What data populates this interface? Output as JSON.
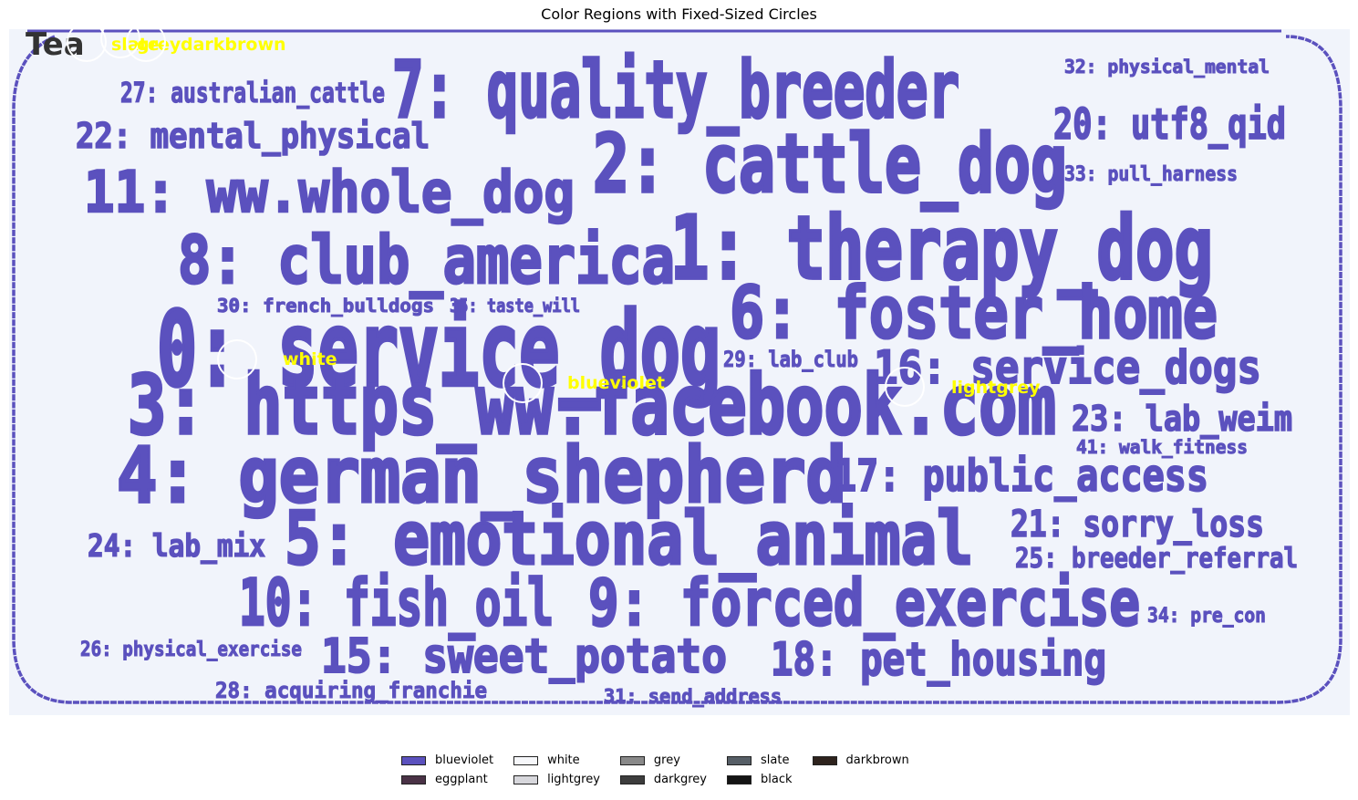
{
  "chart_data": {
    "type": "other",
    "title": "Color Regions with Fixed-Sized Circles",
    "colors": {
      "panel_bg": "#f1f4fb",
      "word_fill": "#5b51be",
      "circle": "#ffffff",
      "circle_label": "#ffff00"
    },
    "words": [
      {
        "text": "7: quality_breeder",
        "size": 0.95
      },
      {
        "text": "2: cattle_dog",
        "size": 0.95
      },
      {
        "text": "1: therapy_dog",
        "size": 0.9
      },
      {
        "text": "0: service_dog",
        "size": 1.0
      },
      {
        "text": "3: https_ww.facebook.com",
        "size": 0.95
      },
      {
        "text": "4: german_shepherd",
        "size": 0.9
      },
      {
        "text": "5: emotional_animal",
        "size": 0.85
      },
      {
        "text": "6: foster_home",
        "size": 0.85
      },
      {
        "text": "8: club_america",
        "size": 0.8
      },
      {
        "text": "9: forced_exercise",
        "size": 0.75
      },
      {
        "text": "10: fish_oil",
        "size": 0.7
      },
      {
        "text": "11: ww.whole_dog",
        "size": 0.6
      },
      {
        "text": "15: sweet_potato",
        "size": 0.5
      },
      {
        "text": "16: service_dogs",
        "size": 0.5
      },
      {
        "text": "17: public_access",
        "size": 0.5
      },
      {
        "text": "18: pet_housing",
        "size": 0.5
      },
      {
        "text": "20: utf8_qid",
        "size": 0.4
      },
      {
        "text": "21: sorry_loss",
        "size": 0.35
      },
      {
        "text": "22: mental_physical",
        "size": 0.35
      },
      {
        "text": "23: lab_weim",
        "size": 0.32
      },
      {
        "text": "24: lab_mix",
        "size": 0.3
      },
      {
        "text": "25: breeder_referral",
        "size": 0.28
      },
      {
        "text": "26: physical_exercise",
        "size": 0.2
      },
      {
        "text": "27: australian_cattle",
        "size": 0.25
      },
      {
        "text": "28: acquiring_franchie",
        "size": 0.22
      },
      {
        "text": "29: lab_club",
        "size": 0.2
      },
      {
        "text": "30: french_bulldogs",
        "size": 0.18
      },
      {
        "text": "31: send_address",
        "size": 0.18
      },
      {
        "text": "32: physical_mental",
        "size": 0.18
      },
      {
        "text": "33: pull_harness",
        "size": 0.18
      },
      {
        "text": "34: pre_con",
        "size": 0.18
      },
      {
        "text": "35: taste_will",
        "size": 0.18
      },
      {
        "text": "41: walk_fitness",
        "size": 0.18
      }
    ],
    "circles": [
      {
        "label": "white"
      },
      {
        "label": "blueviolet"
      },
      {
        "label": "lightgrey"
      },
      {
        "label": "slate"
      },
      {
        "label": "grey"
      },
      {
        "label": "darkbrown"
      }
    ],
    "corner_text": "Tea",
    "legend": [
      {
        "label": "blueviolet",
        "color": "#5b51be"
      },
      {
        "label": "eggplant",
        "color": "#4a3246"
      },
      {
        "label": "white",
        "color": "#f6f7fa"
      },
      {
        "label": "lightgrey",
        "color": "#d7d7dc"
      },
      {
        "label": "grey",
        "color": "#898989"
      },
      {
        "label": "darkgrey",
        "color": "#3d3d3d"
      },
      {
        "label": "slate",
        "color": "#565e66"
      },
      {
        "label": "black",
        "color": "#141414"
      },
      {
        "label": "darkbrown",
        "color": "#2e231d"
      }
    ]
  }
}
